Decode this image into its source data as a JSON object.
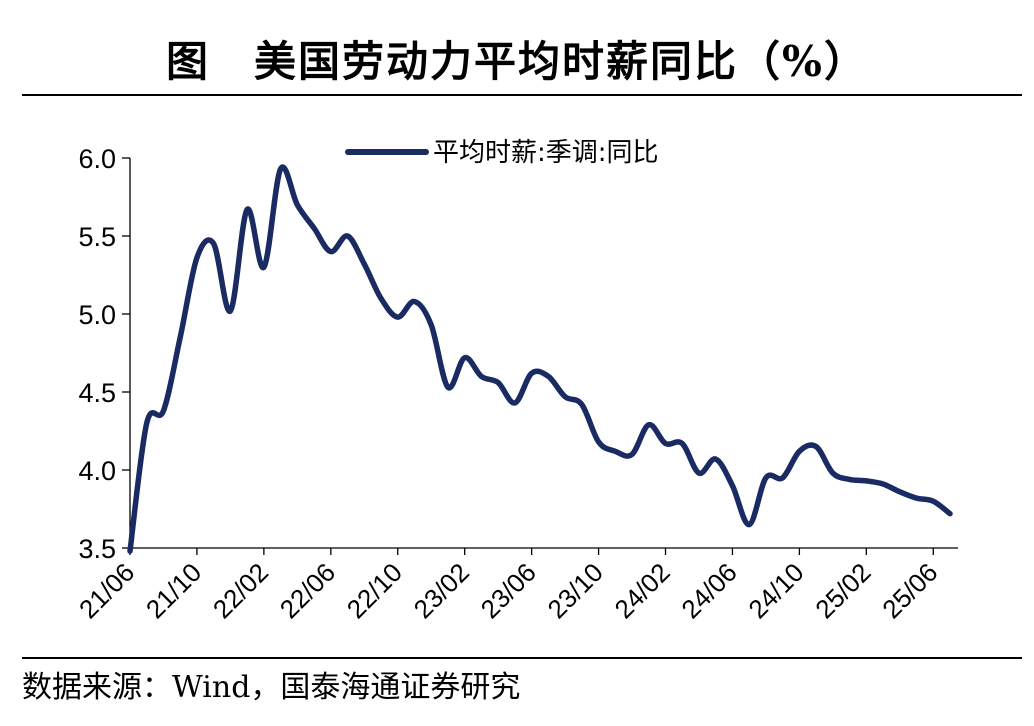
{
  "title": "图　美国劳动力平均时薪同比（%）",
  "source": "数据来源：Wind，国泰海通证券研究",
  "colors": {
    "line": "#1a2b63",
    "axis": "#000000",
    "background": "#ffffff"
  },
  "chart_data": {
    "type": "line",
    "title": "美国劳动力平均时薪同比（%）",
    "xlabel": "",
    "ylabel": "",
    "ylim": [
      3.5,
      6.0
    ],
    "yticks": [
      "6.0",
      "5.5",
      "5.0",
      "4.5",
      "4.0",
      "3.5"
    ],
    "xticks": [
      "21/06",
      "21/10",
      "22/02",
      "22/06",
      "22/10",
      "23/02",
      "23/06",
      "23/10",
      "24/02",
      "24/06",
      "24/10",
      "25/02",
      "25/06"
    ],
    "grid": false,
    "legend_position": "top",
    "series": [
      {
        "name": "平均时薪:季调:同比",
        "x": [
          "21/06",
          "21/07",
          "21/08",
          "21/09",
          "21/10",
          "21/11",
          "21/12",
          "22/01",
          "22/02",
          "22/03",
          "22/04",
          "22/05",
          "22/06",
          "22/07",
          "22/08",
          "22/09",
          "22/10",
          "22/11",
          "22/12",
          "23/01",
          "23/02",
          "23/03",
          "23/04",
          "23/05",
          "23/06",
          "23/07",
          "23/08",
          "23/09",
          "23/10",
          "23/11",
          "23/12",
          "24/01",
          "24/02",
          "24/03",
          "24/04",
          "24/05",
          "24/06",
          "24/07",
          "24/08",
          "24/09",
          "24/10",
          "24/11",
          "24/12",
          "25/01",
          "25/02",
          "25/03",
          "25/04",
          "25/05",
          "25/06",
          "25/07"
        ],
        "values": [
          3.48,
          4.3,
          4.38,
          4.85,
          5.36,
          5.45,
          5.02,
          5.67,
          5.3,
          5.93,
          5.7,
          5.55,
          5.4,
          5.5,
          5.32,
          5.1,
          4.98,
          5.08,
          4.93,
          4.53,
          4.72,
          4.6,
          4.56,
          4.43,
          4.62,
          4.6,
          4.47,
          4.42,
          4.18,
          4.12,
          4.1,
          4.29,
          4.17,
          4.17,
          3.98,
          4.07,
          3.9,
          3.65,
          3.95,
          3.95,
          4.12,
          4.15,
          3.98,
          3.94,
          3.93,
          3.91,
          3.86,
          3.82,
          3.8,
          3.72
        ]
      }
    ]
  }
}
